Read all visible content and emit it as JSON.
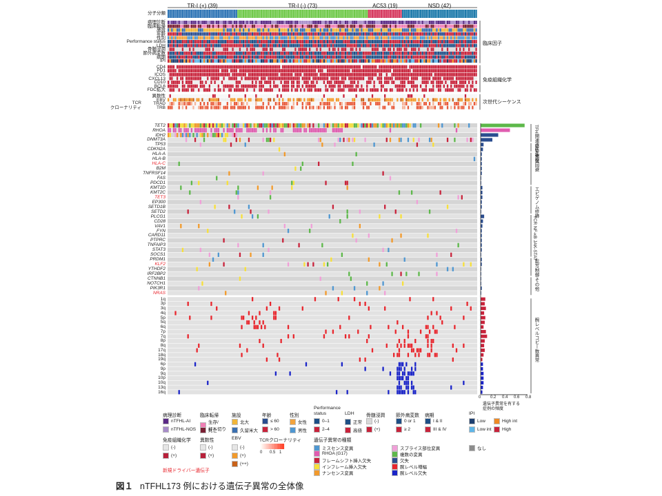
{
  "groups": [
    {
      "label": "TR-I (+) (39)",
      "n": 39,
      "color": "#2f75b5"
    },
    {
      "label": "TR-I (-) (73)",
      "n": 73,
      "color": "#70c94a"
    },
    {
      "label": "AC53 (19)",
      "n": 19,
      "color": "#d63a5f"
    },
    {
      "label": "NSD (42)",
      "n": 42,
      "color": "#1e7bab"
    }
  ],
  "group_row_label": "分子分類",
  "clinical_rows": [
    "病理診断",
    "臨床転帰",
    "施設",
    "年齢",
    "性別",
    "Performance status",
    "LDH",
    "骨髄浸潤",
    "節外病変数",
    "病期",
    "IPI"
  ],
  "clinical_section": "臨床因子",
  "immuno_rows": [
    "CD4",
    "PD1",
    "ICOS",
    "CXCL13",
    "CD10",
    "BCL6",
    "FDC拡大"
  ],
  "immuno_section": "免疫組織化学",
  "ngs_rows": [
    "異数性",
    "EBV",
    "TRAD",
    "TRB"
  ],
  "ngs_left_label": "TCR\nクローナリティ",
  "ngs_section": "次世代シーケンス",
  "gene_rows": [
    {
      "name": "TET2",
      "red": false
    },
    {
      "name": "RHOA",
      "red": false
    },
    {
      "name": "IDH2",
      "red": false
    },
    {
      "name": "DNMT3A",
      "red": false
    },
    {
      "name": "TP53",
      "red": false
    },
    {
      "name": "CDKN2A",
      "red": false
    },
    {
      "name": "HLA-A",
      "red": false
    },
    {
      "name": "HLA-B",
      "red": false
    },
    {
      "name": "HLA-C",
      "red": true
    },
    {
      "name": "B2M",
      "red": false
    },
    {
      "name": "TNFRSF14",
      "red": false
    },
    {
      "name": "FAS",
      "red": false
    },
    {
      "name": "PDCD1",
      "red": false
    },
    {
      "name": "KMT2D",
      "red": false
    },
    {
      "name": "KMT2C",
      "red": false
    },
    {
      "name": "TET3",
      "red": true
    },
    {
      "name": "EP300",
      "red": false
    },
    {
      "name": "SETD1B",
      "red": false
    },
    {
      "name": "SETD2",
      "red": false
    },
    {
      "name": "PLCG1",
      "red": false
    },
    {
      "name": "CD28",
      "red": false
    },
    {
      "name": "VAV1",
      "red": false
    },
    {
      "name": "FYN",
      "red": false
    },
    {
      "name": "CARD11",
      "red": false
    },
    {
      "name": "PTPRC",
      "red": false
    },
    {
      "name": "TNFAIP3",
      "red": false
    },
    {
      "name": "STAT3",
      "red": false
    },
    {
      "name": "SOCS1",
      "red": false
    },
    {
      "name": "PRDM1",
      "red": false
    },
    {
      "name": "KLF2",
      "red": true
    },
    {
      "name": "YTHDF2",
      "red": false
    },
    {
      "name": "IRF2BP2",
      "red": false
    },
    {
      "name": "CTNNB1",
      "red": false
    },
    {
      "name": "NOTCH1",
      "red": false
    },
    {
      "name": "PIK3R1",
      "red": false
    },
    {
      "name": "NRAS",
      "red": true
    }
  ],
  "gene_sections": [
    {
      "label": "TFH関連遺伝子",
      "from": 0,
      "to": 3
    },
    {
      "label": "DNA修復",
      "from": 4,
      "to": 5
    },
    {
      "label": "免疫回避",
      "from": 6,
      "to": 12
    },
    {
      "label": "エピゲノム修飾",
      "from": 13,
      "to": 18
    },
    {
      "label": "TCR NF-κB JAK-STAT",
      "from": 19,
      "to": 27
    },
    {
      "label": "転写制御",
      "from": 28,
      "to": 31
    },
    {
      "label": "その他",
      "from": 32,
      "to": 35
    }
  ],
  "arm_rows": [
    "1q",
    "3p",
    "3q",
    "4q",
    "5p",
    "5q",
    "6q",
    "7p",
    "7q",
    "8p",
    "8q",
    "17q",
    "18q",
    "19q",
    "6p",
    "9p",
    "9q",
    "10p",
    "10q",
    "13q",
    "16q"
  ],
  "arm_section": "腕レベルコピー数異常",
  "bar_axis": {
    "ticks": [
      "0",
      "0.2",
      "0.4",
      "0.6",
      "0.8"
    ],
    "label": "遺伝子異常を有する\n症例の頻度"
  },
  "bar_freq": [
    0.75,
    0.5,
    0.3,
    0.2,
    0.05,
    0.04,
    0.02,
    0.02,
    0.02,
    0.02,
    0.02,
    0.01,
    0.01,
    0.03,
    0.03,
    0.03,
    0.02,
    0.02,
    0.01,
    0.06,
    0.04,
    0.03,
    0.02,
    0.02,
    0.02,
    0.02,
    0.02,
    0.01,
    0.02,
    0.02,
    0.01,
    0.01,
    0.01,
    0.01,
    0.02,
    0.01
  ],
  "arm_freq": [
    0.08,
    0.07,
    0.09,
    0.06,
    0.08,
    0.07,
    0.05,
    0.09,
    0.11,
    0.07,
    0.06,
    0.07,
    0.05,
    0.03,
    0.04,
    0.04,
    0.05,
    0.05,
    0.05,
    0.04,
    0.03
  ],
  "legend": {
    "pathology": {
      "title": "病理診断",
      "items": [
        [
          "nTFHL-AI",
          "#5b2a86"
        ],
        [
          "nTFHL-NOS",
          "#a78cc9"
        ]
      ]
    },
    "outcome": {
      "title": "臨床転帰",
      "items": [
        [
          "生存/\n打ち切り",
          "#f07fb5"
        ],
        [
          "死亡",
          "#7a1f33"
        ]
      ]
    },
    "facility": {
      "title": "施設",
      "items": [
        [
          "北大",
          "#f1b63a"
        ],
        [
          "久留米大",
          "#3a6fb0"
        ]
      ]
    },
    "age": {
      "title": "年齢",
      "items": [
        [
          "≤ 60",
          "#2a4d8f"
        ],
        [
          "> 60",
          "#c8233b"
        ]
      ]
    },
    "sex": {
      "title": "性別",
      "items": [
        [
          "女性",
          "#f3a33c"
        ],
        [
          "男性",
          "#4f97d1"
        ]
      ]
    },
    "ps": {
      "title": "Performance\nstatus",
      "items": [
        [
          "0–1",
          "#1e4f86"
        ],
        [
          "2–4",
          "#c8233b"
        ]
      ]
    },
    "ldh": {
      "title": "LDH",
      "items": [
        [
          "正常",
          "#1e4f86"
        ],
        [
          "高値",
          "#c8233b"
        ]
      ]
    },
    "bm": {
      "title": "骨髄浸潤",
      "items": [
        [
          "(-)",
          "#d9d9d9"
        ],
        [
          "(+)",
          "#c8233b"
        ]
      ]
    },
    "extranodal": {
      "title": "節外病変数",
      "items": [
        [
          "0 or 1",
          "#1e4f86"
        ],
        [
          "≥ 2",
          "#c8233b"
        ]
      ]
    },
    "stage": {
      "title": "病期",
      "items": [
        [
          "I & II",
          "#1e4f86"
        ],
        [
          "III & IV",
          "#c8233b"
        ]
      ]
    },
    "ipi": {
      "title": "IPI",
      "items": [
        [
          "Low",
          "#1e3f70"
        ],
        [
          "Low int",
          "#5fb6e8"
        ],
        [
          "High int",
          "#f08a24"
        ],
        [
          "High",
          "#c8233b"
        ]
      ]
    },
    "ihc": {
      "title": "免疫組織化学",
      "items": [
        [
          "(-)",
          "#e6e6e6"
        ],
        [
          "(+)",
          "#b8203a"
        ]
      ]
    },
    "aneu": {
      "title": "異数性",
      "items": [
        [
          "(-)",
          "#e6e6e6"
        ],
        [
          "(+)",
          "#b8203a"
        ]
      ]
    },
    "ebv": {
      "title": "EBV",
      "items": [
        [
          "(-)",
          "#e6e6e6"
        ],
        [
          "(+)",
          "#f29a2b"
        ],
        [
          "(++)",
          "#c8621a"
        ]
      ]
    },
    "tcr": {
      "title": "TCRクローナリティ",
      "scale": [
        "0",
        "0.5",
        "1"
      ]
    },
    "mut": {
      "title": "遺伝子異常の種類",
      "items": [
        [
          "ミスセンス変異",
          "#4f97d1"
        ],
        [
          "RHOA (G17)",
          "#e05db0"
        ],
        [
          "フレームシフト挿入欠失",
          "#c8233b"
        ],
        [
          "インフレーム挿入欠失",
          "#f7e03a"
        ],
        [
          "ナンセンス変異",
          "#f29a2b"
        ],
        [
          "スプライス部位変異",
          "#f0a0d8"
        ],
        [
          "複数の変異",
          "#5db84a"
        ],
        [
          "欠失",
          "#2a4d8f"
        ],
        [
          "腕レベル増幅",
          "#e8262d"
        ],
        [
          "腕レベル欠失",
          "#1a24c8"
        ]
      ]
    },
    "none": {
      "label": "なし",
      "color": "#8c8c8c"
    },
    "new_driver": "新規ドライバー遺伝子"
  },
  "caption": {
    "fig": "図１",
    "text": "nTFHL173 例における遺伝子異常の全体像"
  }
}
